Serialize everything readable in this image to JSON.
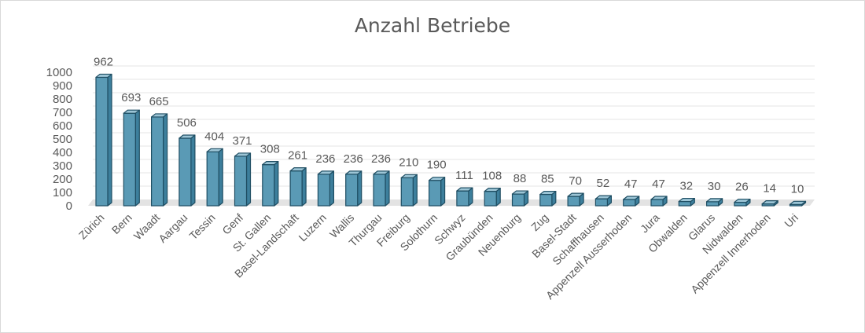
{
  "chart_data": {
    "type": "bar",
    "title": "Anzahl Betriebe",
    "xlabel": "",
    "ylabel": "",
    "ylim": [
      0,
      1000
    ],
    "yticks": [
      0,
      100,
      200,
      300,
      400,
      500,
      600,
      700,
      800,
      900,
      1000
    ],
    "grid": true,
    "legend": "none",
    "bar_color": "#5a9ab5",
    "bar_top_color": "#9cc5d6",
    "bar_side_color": "#3d7f9c",
    "outline_color": "#1f4e63",
    "categories": [
      "Zürich",
      "Bern",
      "Waadt",
      "Aargau",
      "Tessin",
      "Genf",
      "St. Gallen",
      "Basel-Landschaft",
      "Luzern",
      "Wallis",
      "Thurgau",
      "Freiburg",
      "Solothurn",
      "Schwyz",
      "Graubünden",
      "Neuenburg",
      "Zug",
      "Basel-Stadt",
      "Schaffhausen",
      "Appenzell Ausserhoden",
      "Jura",
      "Obwalden",
      "Glarus",
      "Nidwalden",
      "Appenzell Innerhoden",
      "Uri"
    ],
    "values": [
      962,
      693,
      665,
      506,
      404,
      371,
      308,
      261,
      236,
      236,
      236,
      210,
      190,
      111,
      108,
      88,
      85,
      70,
      52,
      47,
      47,
      32,
      30,
      26,
      14,
      10
    ]
  }
}
